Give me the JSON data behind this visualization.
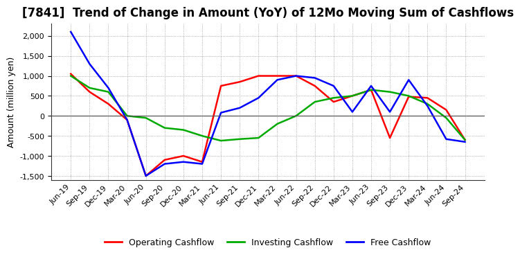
{
  "title": "[7841]  Trend of Change in Amount (YoY) of 12Mo Moving Sum of Cashflows",
  "ylabel": "Amount (million yen)",
  "x_labels": [
    "Jun-19",
    "Sep-19",
    "Dec-19",
    "Mar-20",
    "Jun-20",
    "Sep-20",
    "Dec-20",
    "Mar-21",
    "Jun-21",
    "Sep-21",
    "Dec-21",
    "Mar-22",
    "Jun-22",
    "Sep-22",
    "Dec-22",
    "Mar-23",
    "Jun-23",
    "Sep-23",
    "Dec-23",
    "Mar-24",
    "Jun-24",
    "Sep-24"
  ],
  "operating_cashflow": [
    1050,
    600,
    300,
    -100,
    -1500,
    -1100,
    -1000,
    -1150,
    750,
    850,
    1000,
    1000,
    1000,
    750,
    350,
    500,
    650,
    -550,
    480,
    450,
    150,
    -600
  ],
  "investing_cashflow": [
    1000,
    700,
    600,
    0,
    -50,
    -300,
    -350,
    -500,
    -620,
    -580,
    -550,
    -200,
    0,
    350,
    450,
    500,
    650,
    600,
    500,
    300,
    -50,
    -600
  ],
  "free_cashflow": [
    2100,
    1300,
    700,
    -100,
    -1500,
    -1200,
    -1150,
    -1200,
    80,
    200,
    450,
    900,
    1000,
    950,
    750,
    100,
    750,
    100,
    900,
    250,
    -580,
    -650
  ],
  "operating_color": "#ff0000",
  "investing_color": "#00aa00",
  "free_color": "#0000ff",
  "line_width": 1.8,
  "ylim": [
    -1600,
    2300
  ],
  "yticks": [
    -1500,
    -1000,
    -500,
    0,
    500,
    1000,
    1500,
    2000
  ],
  "background_color": "#ffffff",
  "grid_color": "#999999",
  "title_fontsize": 12,
  "axis_fontsize": 9,
  "tick_fontsize": 8,
  "legend_labels": [
    "Operating Cashflow",
    "Investing Cashflow",
    "Free Cashflow"
  ]
}
